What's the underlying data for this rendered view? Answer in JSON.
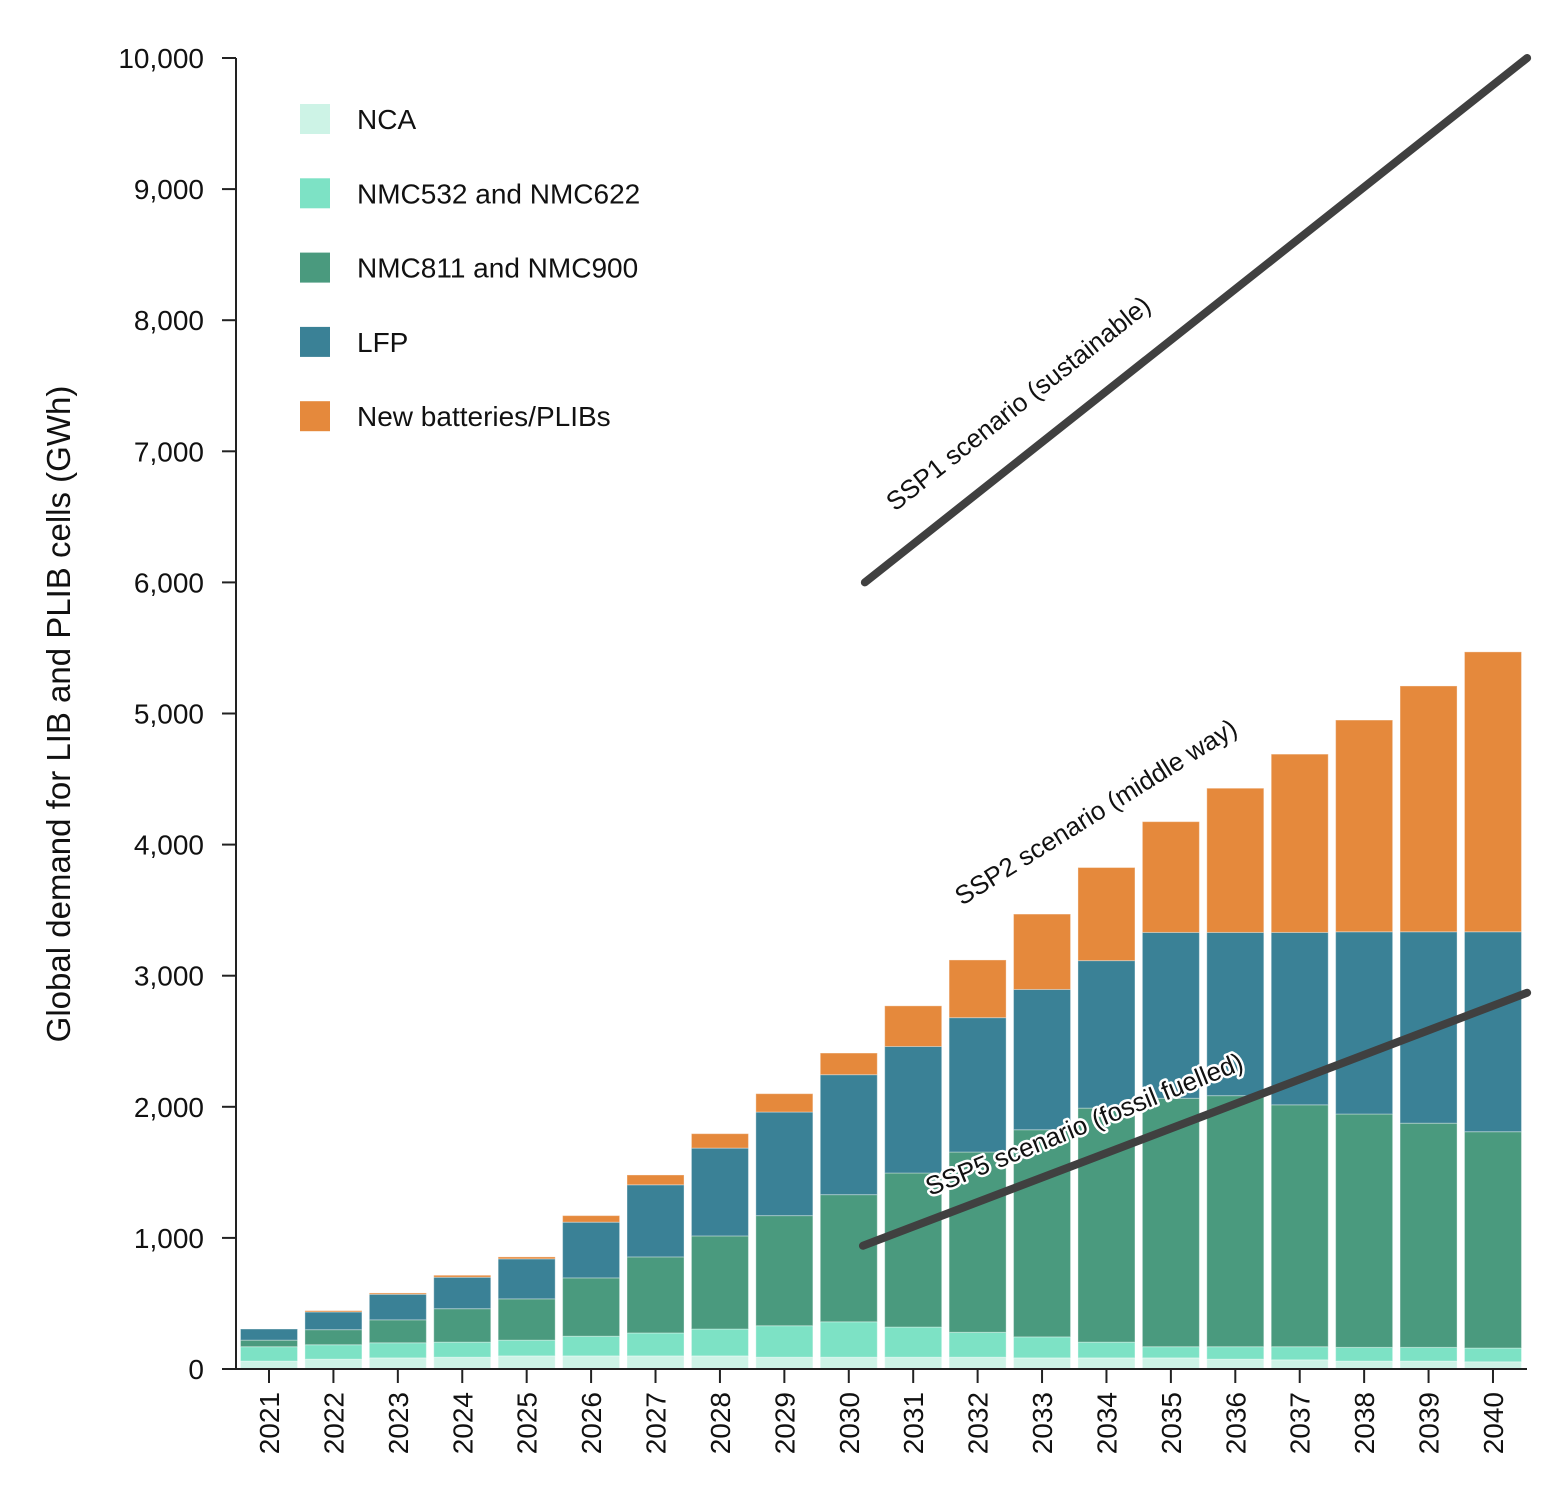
{
  "chart_data": {
    "type": "bar",
    "stacked": true,
    "ylabel": "Global demand for LIB and PLIB cells (GWh)",
    "xlabel": "",
    "ylim": [
      0,
      10000
    ],
    "yticks": [
      "0",
      "1,000",
      "2,000",
      "3,000",
      "4,000",
      "5,000",
      "6,000",
      "7,000",
      "8,000",
      "9,000",
      "10,000"
    ],
    "grid": false,
    "legend_position": "top-left",
    "categories": [
      "2021",
      "2022",
      "2023",
      "2024",
      "2025",
      "2026",
      "2027",
      "2028",
      "2029",
      "2030",
      "2031",
      "2032",
      "2033",
      "2034",
      "2035",
      "2036",
      "2037",
      "2038",
      "2039",
      "2040"
    ],
    "series": [
      {
        "name": "NCA",
        "color": "#cdf3e6",
        "values": [
          60,
          75,
          85,
          90,
          100,
          100,
          100,
          100,
          90,
          90,
          90,
          90,
          85,
          85,
          85,
          75,
          70,
          60,
          60,
          55
        ]
      },
      {
        "name": "NMC532 and NMC622",
        "color": "#7de2c5",
        "values": [
          110,
          110,
          115,
          115,
          120,
          150,
          175,
          205,
          240,
          270,
          230,
          190,
          160,
          120,
          85,
          95,
          100,
          105,
          105,
          105
        ]
      },
      {
        "name": "NMC811 and NMC900",
        "color": "#4a9a7e",
        "values": [
          50,
          115,
          175,
          255,
          315,
          445,
          580,
          710,
          840,
          970,
          1175,
          1375,
          1580,
          1785,
          1895,
          1915,
          1845,
          1780,
          1710,
          1650
        ]
      },
      {
        "name": "LFP",
        "color": "#3a8196",
        "values": [
          85,
          135,
          195,
          240,
          305,
          425,
          550,
          670,
          790,
          915,
          965,
          1025,
          1070,
          1125,
          1265,
          1245,
          1315,
          1390,
          1460,
          1525
        ]
      },
      {
        "name": "New batteries/PLIBs",
        "color": "#e5893c",
        "values": [
          0,
          10,
          10,
          15,
          15,
          50,
          75,
          110,
          140,
          165,
          310,
          440,
          575,
          710,
          845,
          1100,
          1360,
          1615,
          1875,
          2135
        ]
      }
    ],
    "scenario_lines": [
      {
        "label": "SSP1 scenario (sustainable)",
        "color": "#404040",
        "x": [
          2030.25,
          2040.53
        ],
        "y": [
          6000,
          10000
        ]
      },
      {
        "label": "SSP5 scenario (fossil fuelled)",
        "color": "#404040",
        "x": [
          2030.22,
          2040.53
        ],
        "y": [
          940,
          2870
        ]
      }
    ],
    "annotations": [
      {
        "text": "SSP2 scenario (middle way)",
        "follows": "bar totals"
      }
    ]
  }
}
